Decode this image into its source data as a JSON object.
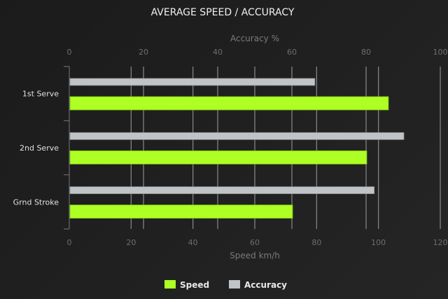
{
  "chart_data": {
    "type": "bar",
    "orientation": "horizontal",
    "title": "AVERAGE SPEED / ACCURACY",
    "categories": [
      "1st Serve",
      "2nd Serve",
      "Grnd Stroke"
    ],
    "series": [
      {
        "name": "Accuracy",
        "axis": "top",
        "color": "#c0c4c6",
        "values": [
          66,
          90,
          82
        ]
      },
      {
        "name": "Speed",
        "axis": "bottom",
        "color": "#adff24",
        "values": [
          103,
          96,
          72
        ]
      }
    ],
    "top_axis": {
      "label": "Accuracy %",
      "range": [
        0,
        100
      ],
      "ticks": [
        "0",
        "20",
        "40",
        "60",
        "80",
        "100"
      ]
    },
    "bottom_axis": {
      "label": "Speed km/h",
      "range": [
        0,
        120
      ],
      "ticks": [
        "0",
        "20",
        "40",
        "60",
        "80",
        "100",
        "120"
      ]
    },
    "grid": true,
    "legend": {
      "position": "bottom",
      "items": [
        "Speed",
        "Accuracy"
      ]
    },
    "background": "#222222"
  }
}
